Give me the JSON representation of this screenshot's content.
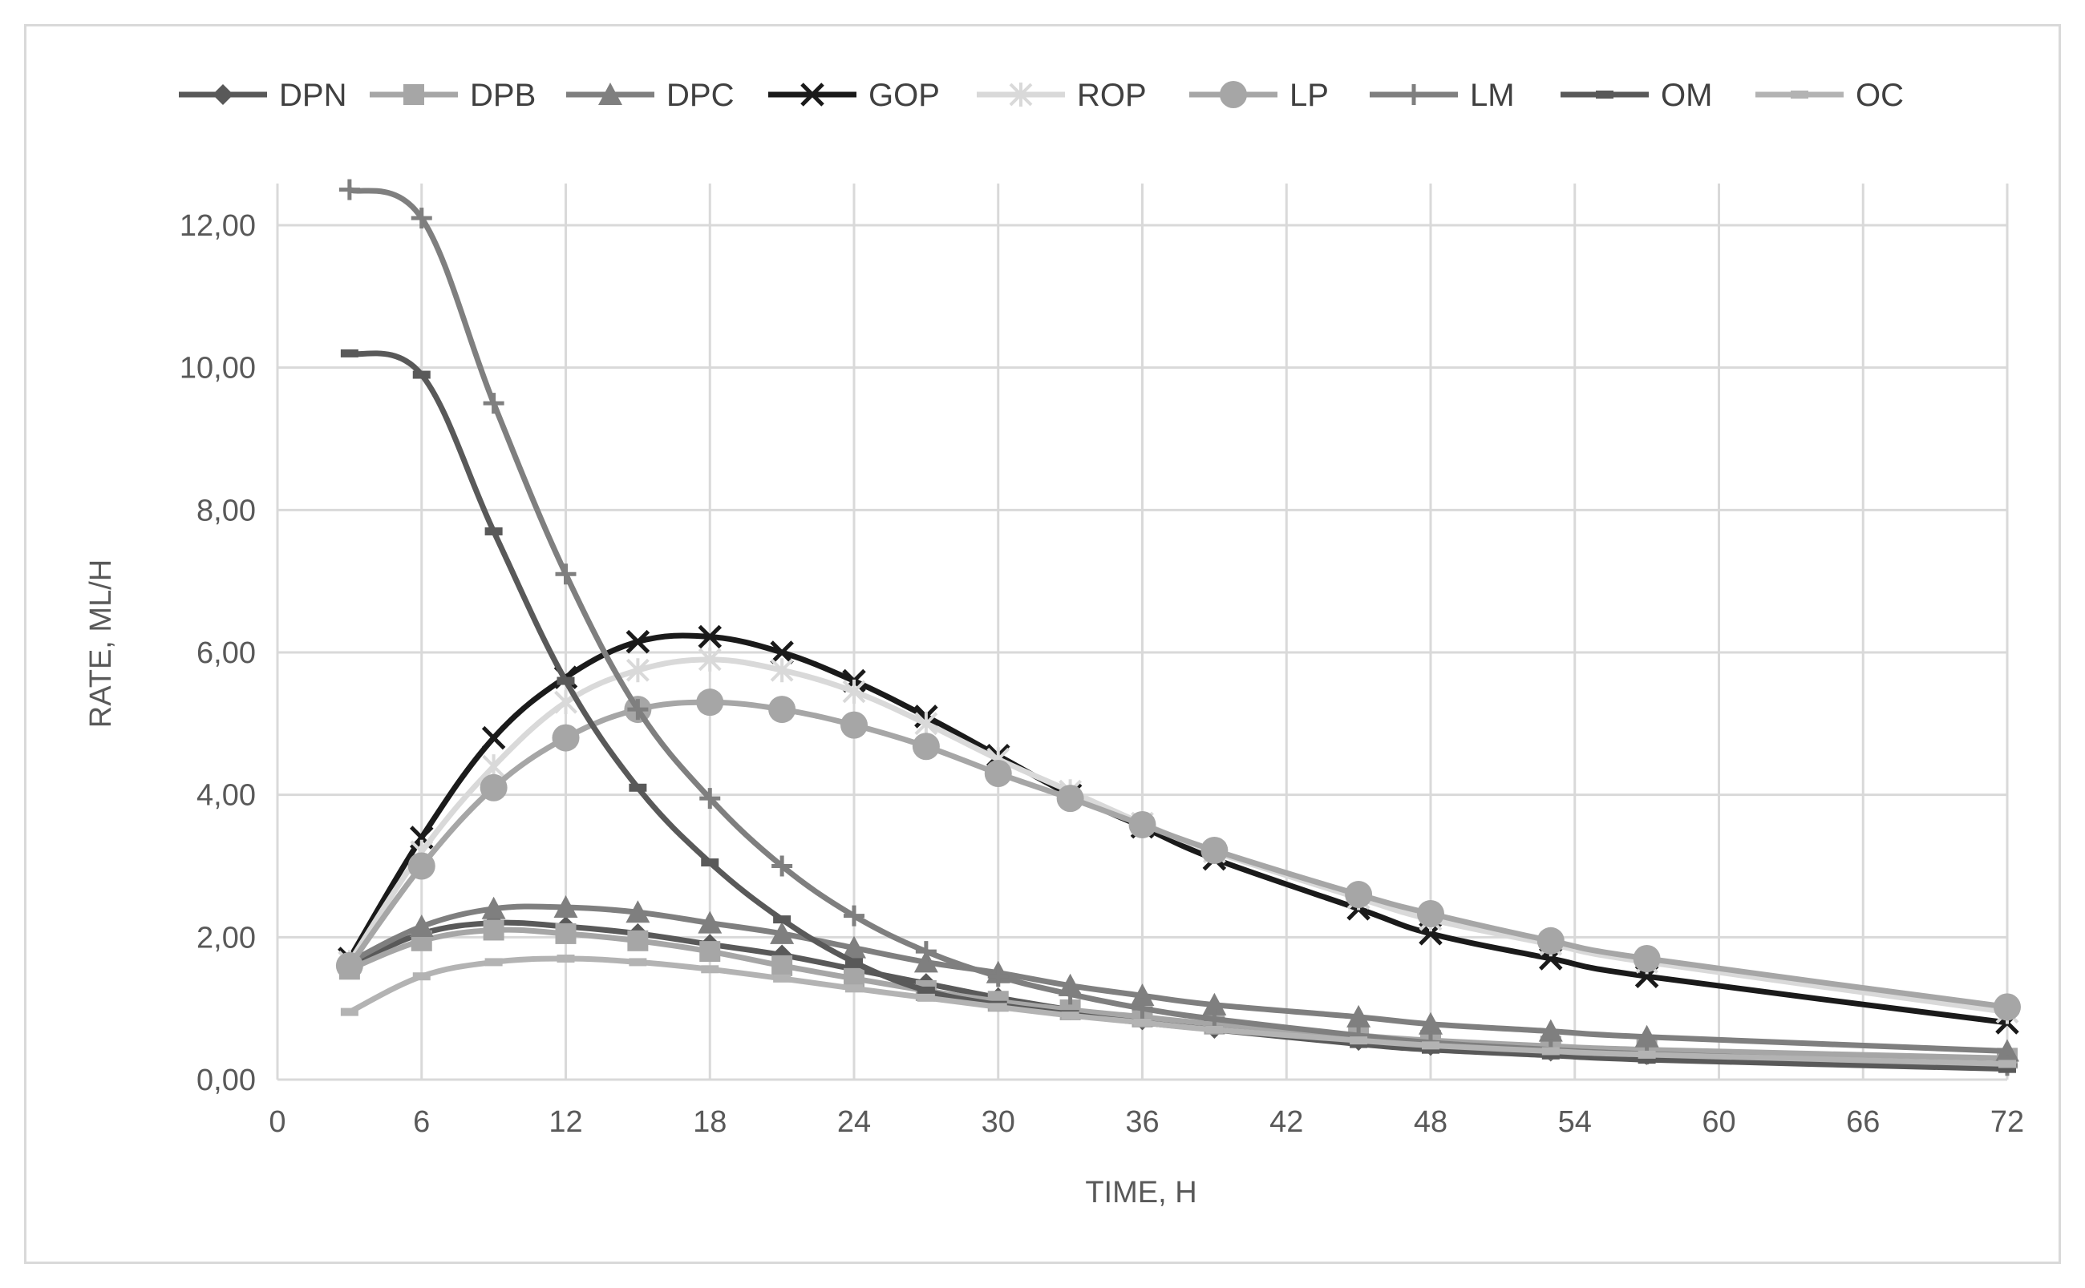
{
  "chart_data": {
    "type": "line",
    "xlabel": "TIME, H",
    "ylabel": "RATE, ML/H",
    "xlim": [
      0,
      72
    ],
    "ylim": [
      0,
      12.5
    ],
    "x_ticks": [
      "0",
      "6",
      "12",
      "18",
      "24",
      "30",
      "36",
      "42",
      "48",
      "54",
      "60",
      "66",
      "72"
    ],
    "y_ticks": [
      "0,00",
      "2,00",
      "4,00",
      "6,00",
      "8,00",
      "10,00",
      "12,00"
    ],
    "grid": true,
    "legend_position": "top",
    "series": [
      {
        "name": "DPN",
        "color": "#595959",
        "marker": "diamond",
        "x": [
          3,
          6,
          9,
          12,
          15,
          18,
          21,
          24,
          27,
          30,
          33,
          36,
          39,
          45,
          48,
          53,
          57,
          72
        ],
        "y": [
          1.6,
          2.05,
          2.2,
          2.15,
          2.05,
          1.9,
          1.75,
          1.55,
          1.35,
          1.15,
          0.98,
          0.84,
          0.72,
          0.55,
          0.48,
          0.4,
          0.35,
          0.22
        ]
      },
      {
        "name": "DPB",
        "color": "#a6a6a6",
        "marker": "square",
        "x": [
          3,
          6,
          9,
          12,
          15,
          18,
          21,
          24,
          27,
          30,
          33,
          36,
          39,
          45,
          48,
          53,
          57,
          72
        ],
        "y": [
          1.55,
          1.95,
          2.1,
          2.05,
          1.95,
          1.8,
          1.6,
          1.42,
          1.25,
          1.1,
          0.98,
          0.88,
          0.78,
          0.62,
          0.55,
          0.47,
          0.42,
          0.3
        ]
      },
      {
        "name": "DPC",
        "color": "#7f7f7f",
        "marker": "triangle",
        "x": [
          3,
          6,
          9,
          12,
          15,
          18,
          21,
          24,
          27,
          30,
          33,
          36,
          39,
          45,
          48,
          53,
          57,
          72
        ],
        "y": [
          1.65,
          2.15,
          2.4,
          2.42,
          2.35,
          2.2,
          2.05,
          1.85,
          1.65,
          1.5,
          1.32,
          1.18,
          1.05,
          0.88,
          0.78,
          0.68,
          0.6,
          0.4
        ]
      },
      {
        "name": "GOP",
        "color": "#1a1a1a",
        "marker": "x",
        "x": [
          3,
          6,
          9,
          12,
          15,
          18,
          21,
          24,
          27,
          30,
          33,
          36,
          39,
          45,
          48,
          53,
          57,
          72
        ],
        "y": [
          1.7,
          3.4,
          4.8,
          5.65,
          6.15,
          6.22,
          6.0,
          5.6,
          5.1,
          4.55,
          4.0,
          3.55,
          3.1,
          2.4,
          2.05,
          1.7,
          1.45,
          0.8
        ]
      },
      {
        "name": "ROP",
        "color": "#d9d9d9",
        "marker": "asterisk",
        "x": [
          3,
          6,
          9,
          12,
          15,
          18,
          21,
          24,
          27,
          30,
          33,
          36,
          39,
          45,
          48,
          53,
          57,
          72
        ],
        "y": [
          1.65,
          3.2,
          4.4,
          5.3,
          5.75,
          5.9,
          5.75,
          5.45,
          5.0,
          4.5,
          4.05,
          3.6,
          3.2,
          2.55,
          2.25,
          1.9,
          1.65,
          0.95
        ]
      },
      {
        "name": "LP",
        "color": "#a6a6a6",
        "marker": "circle",
        "x": [
          3,
          6,
          9,
          12,
          15,
          18,
          21,
          24,
          27,
          30,
          33,
          36,
          39,
          45,
          48,
          53,
          57,
          72
        ],
        "y": [
          1.6,
          3.0,
          4.1,
          4.8,
          5.2,
          5.3,
          5.2,
          4.98,
          4.68,
          4.3,
          3.95,
          3.58,
          3.22,
          2.6,
          2.33,
          1.95,
          1.7,
          1.02
        ]
      },
      {
        "name": "LM",
        "color": "#7f7f7f",
        "marker": "plus",
        "x": [
          3,
          6,
          9,
          12,
          15,
          18,
          21,
          24,
          27,
          30,
          33,
          36,
          39,
          45,
          48,
          53,
          57,
          72
        ],
        "y": [
          12.5,
          12.1,
          9.5,
          7.1,
          5.2,
          3.95,
          3.0,
          2.3,
          1.8,
          1.45,
          1.2,
          1.0,
          0.85,
          0.62,
          0.52,
          0.42,
          0.36,
          0.2
        ]
      },
      {
        "name": "OM",
        "color": "#595959",
        "marker": "dash",
        "x": [
          3,
          6,
          9,
          12,
          15,
          18,
          21,
          24,
          27,
          30,
          33,
          36,
          39,
          45,
          48,
          53,
          57,
          72
        ],
        "y": [
          10.2,
          9.9,
          7.7,
          5.6,
          4.1,
          3.05,
          2.25,
          1.65,
          1.25,
          1.05,
          0.92,
          0.8,
          0.7,
          0.5,
          0.42,
          0.34,
          0.28,
          0.15
        ]
      },
      {
        "name": "OC",
        "color": "#b3b3b3",
        "marker": "dash",
        "x": [
          3,
          6,
          9,
          12,
          15,
          18,
          21,
          24,
          27,
          30,
          33,
          36,
          39,
          45,
          48,
          53,
          57,
          72
        ],
        "y": [
          0.95,
          1.45,
          1.65,
          1.7,
          1.65,
          1.55,
          1.42,
          1.28,
          1.15,
          1.02,
          0.9,
          0.8,
          0.7,
          0.55,
          0.48,
          0.4,
          0.35,
          0.22
        ]
      }
    ]
  }
}
